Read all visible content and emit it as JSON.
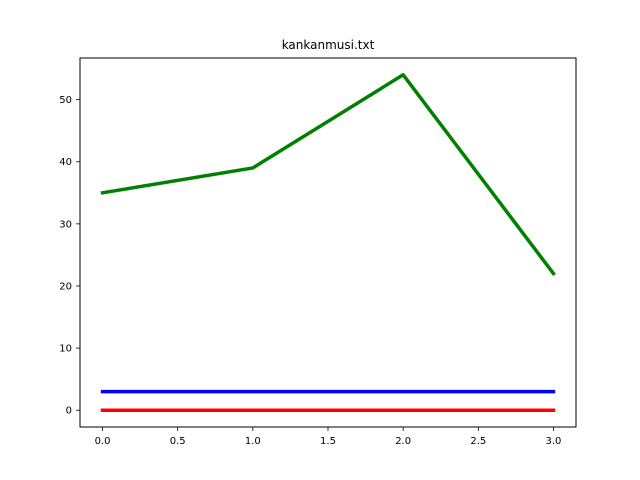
{
  "chart_data": {
    "type": "line",
    "title": "kankanmusi.txt",
    "xlabel": "",
    "ylabel": "",
    "x": [
      0,
      1,
      2,
      3
    ],
    "xlim": [
      -0.15,
      3.15
    ],
    "ylim": [
      -2.7,
      56.7
    ],
    "xticks": [
      0.0,
      0.5,
      1.0,
      1.5,
      2.0,
      2.5,
      3.0
    ],
    "xtick_labels": [
      "0.0",
      "0.5",
      "1.0",
      "1.5",
      "2.0",
      "2.5",
      "3.0"
    ],
    "yticks": [
      0,
      10,
      20,
      30,
      40,
      50
    ],
    "ytick_labels": [
      "0",
      "10",
      "20",
      "30",
      "40",
      "50"
    ],
    "grid": false,
    "legend": false,
    "series": [
      {
        "values": [
          35,
          39,
          54,
          22
        ],
        "color": "#008000"
      },
      {
        "values": [
          3,
          3,
          3,
          3
        ],
        "color": "#0000ff"
      },
      {
        "values": [
          0,
          0,
          0,
          0
        ],
        "color": "#ff0000"
      }
    ]
  }
}
